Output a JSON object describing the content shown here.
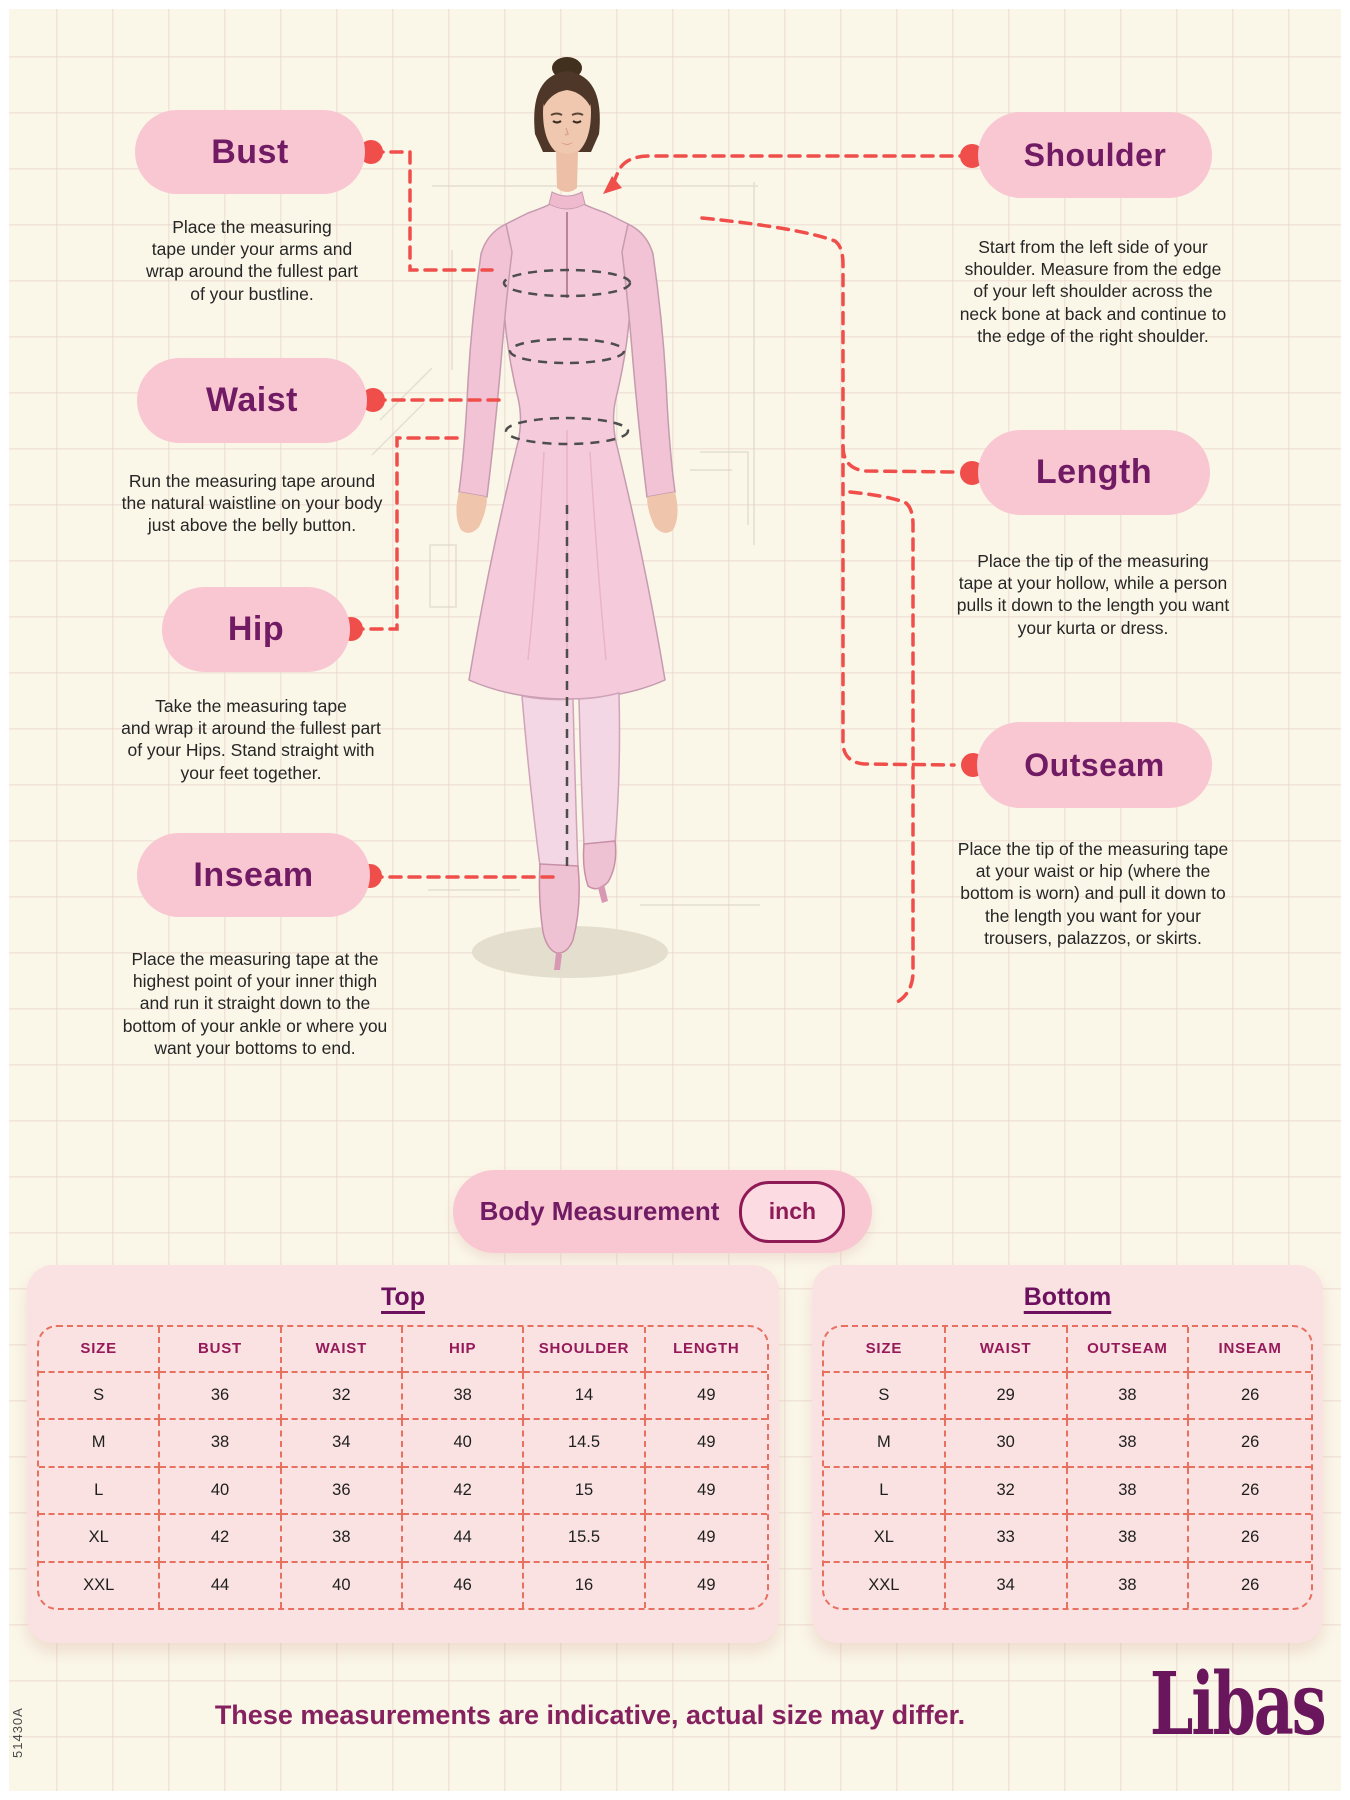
{
  "canvas": {
    "bg": "#FAF6E8",
    "accent_red": "#F04E4B",
    "pill_pink": "#F9C7D1",
    "title_purple": "#701B63",
    "table_header_color": "#96195A",
    "card_pink": "#F9E2E1"
  },
  "measurements": {
    "bust": {
      "title": "Bust",
      "description": "Place the measuring\ntape under your arms and\nwrap around the fullest part\nof your bustline."
    },
    "waist": {
      "title": "Waist",
      "description": "Run the measuring tape around\nthe natural waistline on your body\njust above the belly button."
    },
    "hip": {
      "title": "Hip",
      "description": "Take the measuring tape\nand wrap it around the fullest part\nof your Hips. Stand straight with\nyour feet together."
    },
    "inseam": {
      "title": "Inseam",
      "description": "Place the measuring tape at the\nhighest point of your inner thigh\nand run it straight down to the\nbottom of your ankle or where you\nwant your bottoms to end."
    },
    "shoulder": {
      "title": "Shoulder",
      "description": "Start from the left side of your\nshoulder. Measure from the edge\nof your left shoulder across the\nneck bone at back and continue to\nthe edge of the right shoulder."
    },
    "length": {
      "title": "Length",
      "description": "Place the tip of the measuring\ntape at your hollow, while a person\npulls it down to the length you want\nyour kurta or dress."
    },
    "outseam": {
      "title": "Outseam",
      "description": "Place the tip of the measuring tape\nat your waist or hip (where the\nbottom is worn) and pull it down to\nthe length you want for your\ntrousers, palazzos, or skirts."
    }
  },
  "unit_bar": {
    "label": "Body Measurement",
    "unit": "inch"
  },
  "tables": {
    "top": {
      "title": "Top",
      "headers": [
        "SIZE",
        "BUST",
        "WAIST",
        "HIP",
        "SHOULDER",
        "LENGTH"
      ],
      "rows": [
        [
          "S",
          "36",
          "32",
          "38",
          "14",
          "49"
        ],
        [
          "M",
          "38",
          "34",
          "40",
          "14.5",
          "49"
        ],
        [
          "L",
          "40",
          "36",
          "42",
          "15",
          "49"
        ],
        [
          "XL",
          "42",
          "38",
          "44",
          "15.5",
          "49"
        ],
        [
          "XXL",
          "44",
          "40",
          "46",
          "16",
          "49"
        ]
      ]
    },
    "bottom": {
      "title": "Bottom",
      "headers": [
        "SIZE",
        "WAIST",
        "OUTSEAM",
        "INSEAM"
      ],
      "rows": [
        [
          "S",
          "29",
          "38",
          "26"
        ],
        [
          "M",
          "30",
          "38",
          "26"
        ],
        [
          "L",
          "32",
          "38",
          "26"
        ],
        [
          "XL",
          "33",
          "38",
          "26"
        ],
        [
          "XXL",
          "34",
          "38",
          "26"
        ]
      ]
    }
  },
  "footer": {
    "note": "These measurements are indicative, actual size may differ.",
    "brand": "Libas"
  },
  "side_code": "51430A"
}
